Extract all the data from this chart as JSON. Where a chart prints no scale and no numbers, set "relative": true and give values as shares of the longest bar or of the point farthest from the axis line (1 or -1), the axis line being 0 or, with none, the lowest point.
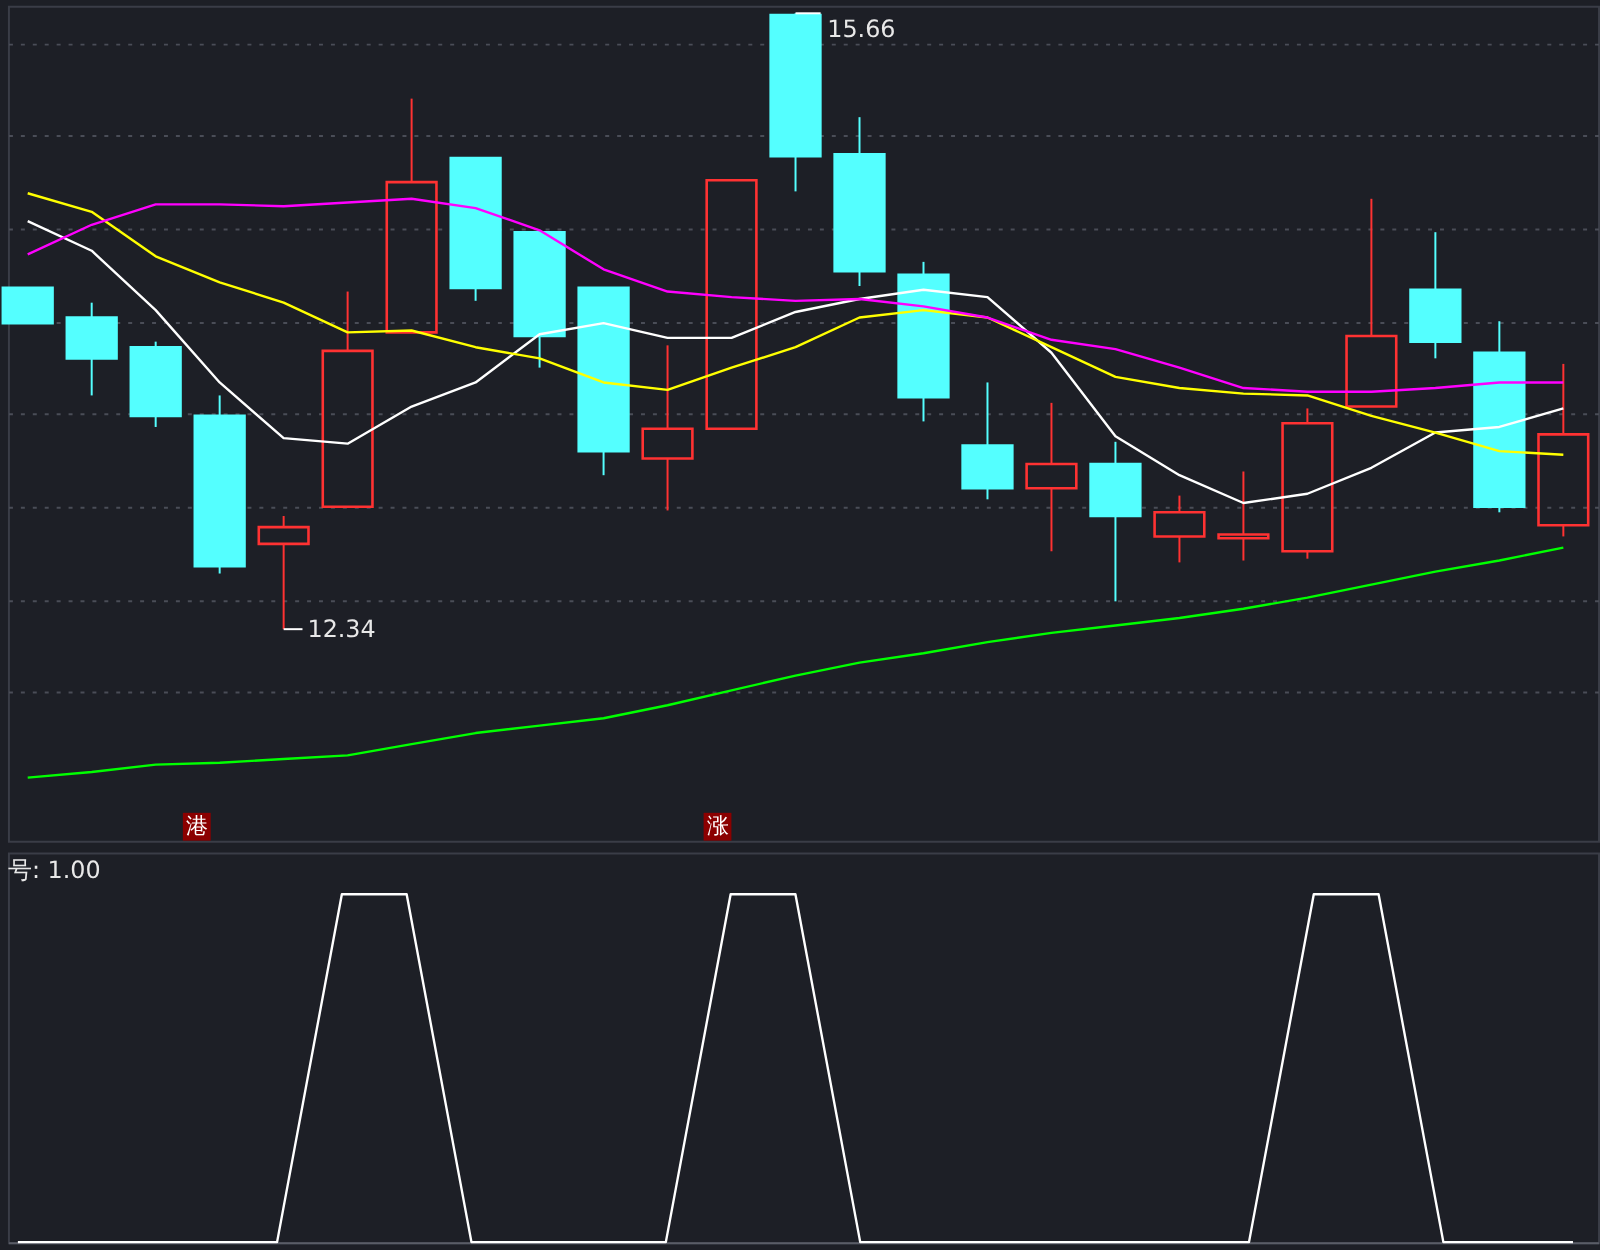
{
  "chart_data": [
    {
      "type": "candlestick",
      "categories": [
        null,
        null,
        null,
        null,
        null,
        null,
        null,
        null,
        null,
        null,
        null,
        null,
        null,
        null,
        null,
        null,
        null,
        null,
        null,
        null,
        null,
        null,
        null,
        null,
        null
      ],
      "ohlc": [
        [
          14.18,
          14.18,
          13.99,
          13.99
        ],
        [
          14.02,
          14.1,
          13.6,
          13.8
        ],
        [
          13.86,
          13.89,
          13.43,
          13.49
        ],
        [
          13.49,
          13.6,
          12.64,
          12.68
        ],
        [
          12.8,
          12.95,
          12.34,
          12.89
        ],
        [
          13.0,
          14.16,
          13.0,
          13.84
        ],
        [
          13.94,
          15.2,
          13.94,
          14.75
        ],
        [
          14.88,
          14.88,
          14.11,
          14.18
        ],
        [
          14.48,
          14.48,
          13.75,
          13.92
        ],
        [
          14.18,
          14.18,
          13.17,
          13.3
        ],
        [
          13.26,
          13.87,
          12.98,
          13.42
        ],
        [
          13.42,
          14.76,
          13.42,
          14.76
        ],
        [
          15.65,
          15.66,
          14.7,
          14.89
        ],
        [
          14.9,
          15.1,
          14.19,
          14.27
        ],
        [
          14.25,
          14.32,
          13.46,
          13.59
        ],
        [
          13.33,
          13.67,
          13.04,
          13.1
        ],
        [
          13.1,
          13.56,
          12.76,
          13.23
        ],
        [
          13.23,
          13.35,
          12.49,
          12.95
        ],
        [
          12.84,
          13.06,
          12.7,
          12.97
        ],
        [
          12.83,
          13.19,
          12.71,
          12.85
        ],
        [
          12.76,
          13.53,
          12.72,
          13.45
        ],
        [
          13.54,
          14.66,
          13.54,
          13.92
        ],
        [
          14.17,
          14.48,
          13.8,
          13.89
        ],
        [
          13.83,
          14.0,
          12.97,
          13.0
        ],
        [
          12.9,
          13.77,
          12.84,
          13.39
        ]
      ],
      "colors": [
        "#54ffff",
        "#54ffff",
        "#54ffff",
        "#54ffff",
        "#ff3232",
        "#ff3232",
        "#ff3232",
        "#54ffff",
        "#54ffff",
        "#54ffff",
        "#ff3232",
        "#ff3232",
        "#54ffff",
        "#54ffff",
        "#54ffff",
        "#54ffff",
        "#ff3232",
        "#54ffff",
        "#ff3232",
        "#ff3232",
        "#ff3232",
        "#ff3232",
        "#54ffff",
        "#54ffff",
        "#ff3232"
      ],
      "series": [
        {
          "type": "line",
          "color": "#ffffff",
          "values": [
            14.54,
            14.38,
            14.06,
            13.67,
            13.37,
            13.34,
            13.54,
            13.67,
            13.93,
            13.99,
            13.91,
            13.91,
            14.05,
            14.12,
            14.17,
            14.13,
            13.83,
            13.38,
            13.17,
            13.02,
            13.07,
            13.21,
            13.4,
            13.43,
            13.53
          ]
        },
        {
          "type": "line",
          "color": "#ffff00",
          "values": [
            14.69,
            14.59,
            14.35,
            14.21,
            14.1,
            13.94,
            13.95,
            13.86,
            13.8,
            13.67,
            13.63,
            13.75,
            13.86,
            14.02,
            14.06,
            14.02,
            13.86,
            13.7,
            13.64,
            13.61,
            13.6,
            13.49,
            13.4,
            13.3,
            13.28
          ]
        },
        {
          "type": "line",
          "color": "#ff00ff",
          "values": [
            14.36,
            14.52,
            14.63,
            14.63,
            14.62,
            14.64,
            14.66,
            14.61,
            14.49,
            14.28,
            14.16,
            14.13,
            14.11,
            14.12,
            14.08,
            14.02,
            13.9,
            13.85,
            13.75,
            13.64,
            13.62,
            13.62,
            13.64,
            13.67,
            13.67
          ]
        },
        {
          "type": "line",
          "color": "#00ff00",
          "values": [
            11.54,
            11.57,
            11.61,
            11.62,
            11.64,
            11.66,
            11.72,
            11.78,
            11.82,
            11.86,
            11.93,
            12.01,
            12.09,
            12.16,
            12.21,
            12.27,
            12.32,
            12.36,
            12.4,
            12.45,
            12.51,
            12.58,
            12.65,
            12.71,
            12.78
          ]
        }
      ],
      "ylim": [
        11.2,
        15.7
      ],
      "yticks": [
        {
          "value": 12.0,
          "label": null
        },
        {
          "value": 12.5,
          "label": null
        },
        {
          "value": 13.0,
          "label": null
        },
        {
          "value": 13.5,
          "label": null
        },
        {
          "value": 14.0,
          "label": null
        },
        {
          "value": 14.5,
          "label": null
        },
        {
          "value": 15.0,
          "label": null
        },
        {
          "value": 15.5,
          "label": null
        }
      ],
      "grid": "y",
      "tick_labels": false,
      "annotations": [
        "15.66",
        "12.34",
        "港",
        "涨"
      ]
    },
    {
      "type": "line",
      "title": "号: 1.00",
      "categories": [
        null,
        null,
        null,
        null,
        null,
        null,
        null,
        null,
        null,
        null,
        null,
        null,
        null,
        null,
        null,
        null,
        null,
        null,
        null,
        null,
        null,
        null,
        null,
        null,
        null
      ],
      "relative": true,
      "tick_labels": false,
      "series": [
        {
          "color": "#ffffff",
          "values": [
            0,
            0,
            0,
            0,
            0,
            1,
            1,
            0,
            0,
            0,
            0,
            1,
            1,
            0,
            0,
            0,
            0,
            0,
            0,
            0,
            1,
            1,
            0,
            0,
            0
          ]
        }
      ]
    }
  ]
}
